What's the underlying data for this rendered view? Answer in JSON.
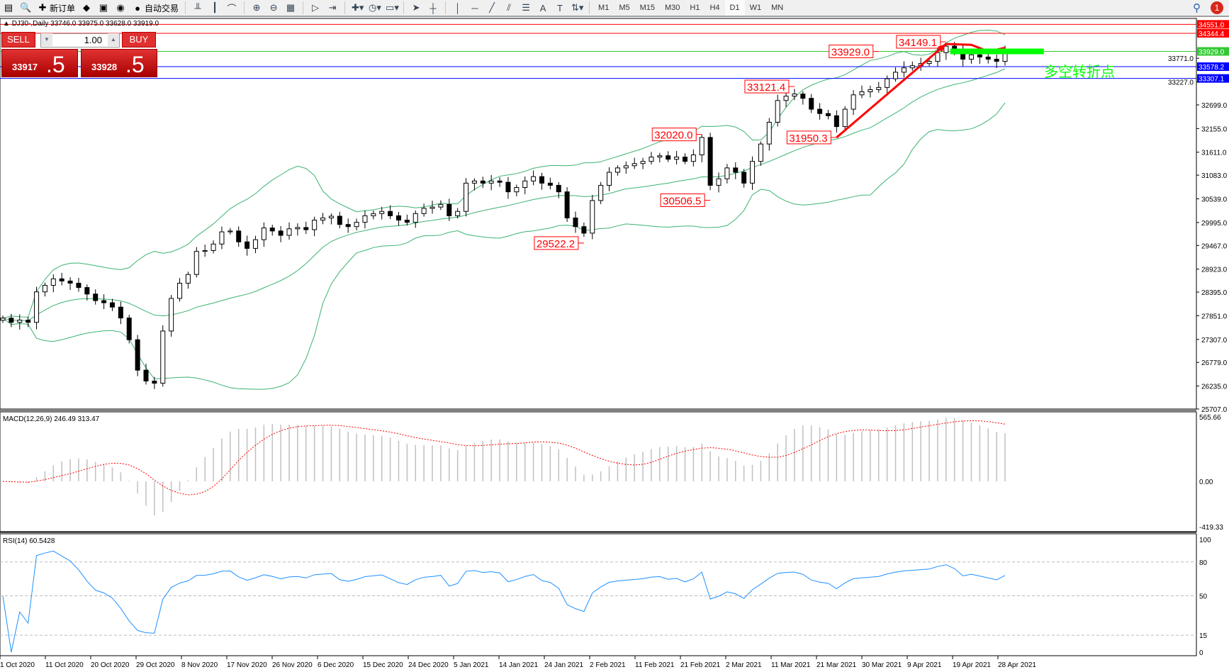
{
  "toolbar": {
    "items": [
      {
        "icon": "new-chart-icon",
        "label": ""
      },
      {
        "icon": "zoom-chart-icon",
        "label": ""
      },
      {
        "icon": "new-order-icon",
        "label": "新订单"
      },
      {
        "icon": "metaeditor-icon",
        "label": ""
      },
      {
        "icon": "terminal-icon",
        "label": ""
      },
      {
        "icon": "signal-icon",
        "label": ""
      },
      {
        "icon": "auto-trading-icon",
        "label": "自动交易"
      }
    ],
    "tools": [
      "bar-chart-icon",
      "candlestick-icon",
      "line-chart-icon",
      "zoom-in-icon",
      "zoom-out-icon",
      "tile-windows-icon",
      "auto-scroll-icon",
      "chart-shift-icon",
      "indicators-icon",
      "periods-icon",
      "templates-icon",
      "cursor-icon",
      "crosshair-icon",
      "vertical-line-icon",
      "horizontal-line-icon",
      "trendline-icon",
      "equidistant-channel-icon",
      "fibonacci-icon",
      "text-icon",
      "text-label-icon",
      "arrows-icon"
    ],
    "timeframes": [
      "M1",
      "M5",
      "M15",
      "M30",
      "H1",
      "H4",
      "D1",
      "W1",
      "MN"
    ],
    "active_timeframe": "D1",
    "notifications": "1"
  },
  "chart": {
    "info": "DJ30-,Daily  33746.0 33975.0 33628.0 33919.0",
    "trade_panel": {
      "sell_label": "SELL",
      "buy_label": "BUY",
      "lots": "1.00",
      "sell_small": "33917",
      "sell_big": ".5",
      "buy_small": "33928",
      "buy_big": ".5"
    },
    "annotation_text": "多空转折点",
    "colors": {
      "up": "#ffffff",
      "down": "#000000",
      "bands": "#3cb371",
      "macd_signal": "#ff0000",
      "macd_hist": "#c0c0c0",
      "rsi": "#1e90ff",
      "annotation": "#00ff00",
      "arrow": "#ff0000"
    }
  },
  "chart_data": [
    {
      "type": "candlestick",
      "title": "DJ30-,Daily",
      "closes": [
        27797,
        27700,
        27750,
        27700,
        28400,
        28550,
        28700,
        28650,
        28600,
        28500,
        28350,
        28200,
        28150,
        28050,
        27800,
        27300,
        26600,
        26350,
        26300,
        27500,
        28250,
        28600,
        28800,
        29330,
        29350,
        29500,
        29780,
        29800,
        29550,
        29400,
        29600,
        29870,
        29800,
        29700,
        29850,
        29880,
        29830,
        30050,
        30100,
        30140,
        29950,
        29900,
        30000,
        30150,
        30200,
        30250,
        30150,
        30050,
        30000,
        30200,
        30320,
        30350,
        30410,
        30150,
        30250,
        30900,
        30950,
        30900,
        30950,
        30920,
        30700,
        30800,
        30950,
        31050,
        30900,
        30850,
        30700,
        30100,
        29900,
        29750,
        30500,
        30850,
        31150,
        31250,
        31300,
        31350,
        31400,
        31500,
        31530,
        31450,
        31500,
        31400,
        31550,
        31950,
        30850,
        31000,
        31250,
        31150,
        30900,
        31400,
        31800,
        32300,
        32800,
        32900,
        32950,
        32850,
        32600,
        32500,
        32450,
        32200,
        32600,
        32930,
        33000,
        33050,
        33100,
        33300,
        33450,
        33550,
        33600,
        33650,
        33700,
        33900,
        34050,
        33950,
        33750,
        33850,
        33800,
        33750,
        33700,
        33919
      ],
      "x_tick_labels": [
        "1 Oct 2020",
        "11 Oct 2020",
        "20 Oct 2020",
        "29 Oct 2020",
        "8 Nov 2020",
        "17 Nov 2020",
        "26 Nov 2020",
        "6 Dec 2020",
        "15 Dec 2020",
        "24 Dec 2020",
        "5 Jan 2021",
        "14 Jan 2021",
        "24 Jan 2021",
        "2 Feb 2021",
        "11 Feb 2021",
        "21 Feb 2021",
        "2 Mar 2021",
        "11 Mar 2021",
        "21 Mar 2021",
        "30 Mar 2021",
        "9 Apr 2021",
        "19 Apr 2021",
        "28 Apr 2021"
      ],
      "y_tick_labels": [
        "33771.0",
        "33227.0",
        "32699.0",
        "32155.0",
        "31611.0",
        "31083.0",
        "30539.0",
        "29995.0",
        "29467.0",
        "28923.0",
        "28395.0",
        "27851.0",
        "27307.0",
        "26779.0",
        "26235.0",
        "25707.0"
      ],
      "ylim": [
        25707,
        34700
      ],
      "indicator": "Bollinger Bands",
      "hlines": [
        {
          "value": "34551.0",
          "color": "#ff0000"
        },
        {
          "value": "34344.4",
          "color": "#ff0000"
        },
        {
          "value": "33929.0",
          "color": "#32c832"
        },
        {
          "value": "33578.2",
          "color": "#0000ff"
        },
        {
          "value": "33307.1",
          "color": "#0000ff"
        }
      ],
      "price_labels": [
        {
          "text": "34149.1",
          "bar": 112
        },
        {
          "text": "33929.0",
          "bar": 104
        },
        {
          "text": "33121.4",
          "bar": 94
        },
        {
          "text": "32020.0",
          "bar": 83
        },
        {
          "text": "31950.3",
          "bar": 99
        },
        {
          "text": "30506.5",
          "bar": 84
        },
        {
          "text": "29522.2",
          "bar": 69
        }
      ]
    },
    {
      "type": "bar",
      "title": "MACD(12,26,9) 246.49 313.47",
      "ylim": [
        -419.33,
        565.66
      ],
      "y_tick_labels": [
        "565.66",
        "0.00",
        "-419.33"
      ]
    },
    {
      "type": "line",
      "title": "RSI(14) 60.5428",
      "ylim": [
        0,
        100
      ],
      "levels": [
        80,
        50,
        15
      ],
      "y_tick_labels": [
        "100",
        "80",
        "50",
        "15",
        "0"
      ]
    }
  ]
}
